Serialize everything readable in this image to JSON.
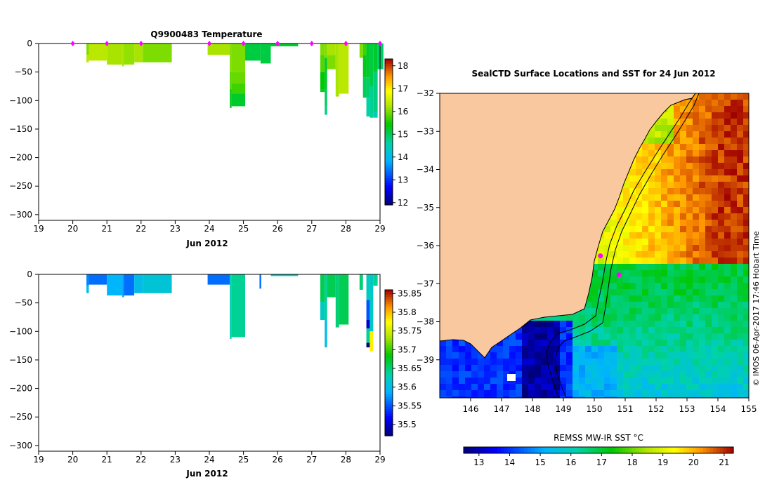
{
  "colors": {
    "land": "#f9c89e",
    "marker": "#ff00ff",
    "axis": "#000000"
  },
  "chart_data": [
    {
      "id": "temperature-profile",
      "type": "heatmap",
      "title": "Q9900483  Temperature",
      "xlabel": "Jun 2012",
      "x_ticks": [
        "19",
        "20",
        "21",
        "22",
        "23",
        "24",
        "25",
        "26",
        "27",
        "28",
        "29"
      ],
      "xlim": [
        19,
        29
      ],
      "ylim": [
        -310,
        0
      ],
      "y_ticks": [
        "0",
        "−50",
        "−100",
        "−150",
        "−200",
        "−250",
        "−300"
      ],
      "y_tick_values": [
        0,
        -50,
        -100,
        -150,
        -200,
        -250,
        -300
      ],
      "surface_markers": [
        20.0,
        21.0,
        22.0,
        24.0,
        25.0,
        26.0,
        27.0,
        28.0,
        29.0
      ],
      "profiles": [
        {
          "x0": 20.4,
          "x1": 20.47,
          "segments": [
            [
              0,
              -20,
              16.0
            ],
            [
              -20,
              -33,
              16.3
            ]
          ]
        },
        {
          "x0": 20.47,
          "x1": 21.0,
          "segments": [
            [
              0,
              -30,
              16.3
            ]
          ]
        },
        {
          "x0": 21.0,
          "x1": 21.45,
          "segments": [
            [
              0,
              -37,
              16.2
            ]
          ]
        },
        {
          "x0": 21.45,
          "x1": 21.5,
          "segments": [
            [
              0,
              -40,
              16.2
            ]
          ]
        },
        {
          "x0": 21.5,
          "x1": 21.8,
          "segments": [
            [
              0,
              -37,
              16.1
            ]
          ]
        },
        {
          "x0": 21.8,
          "x1": 22.05,
          "segments": [
            [
              0,
              -33,
              16.2
            ]
          ]
        },
        {
          "x0": 22.05,
          "x1": 22.9,
          "segments": [
            [
              0,
              -33,
              16.0
            ]
          ]
        },
        {
          "x0": 23.95,
          "x1": 24.6,
          "segments": [
            [
              0,
              -20,
              16.2
            ]
          ]
        },
        {
          "x0": 24.6,
          "x1": 24.65,
          "segments": [
            [
              0,
              -50,
              16.0
            ],
            [
              -50,
              -80,
              15.8
            ],
            [
              -80,
              -113,
              15.3
            ]
          ]
        },
        {
          "x0": 24.65,
          "x1": 25.05,
          "segments": [
            [
              0,
              -50,
              16.0
            ],
            [
              -50,
              -70,
              15.9
            ],
            [
              -70,
              -88,
              15.7
            ],
            [
              -88,
              -110,
              15.2
            ]
          ]
        },
        {
          "x0": 25.05,
          "x1": 25.5,
          "segments": [
            [
              0,
              -30,
              15.1
            ]
          ]
        },
        {
          "x0": 25.5,
          "x1": 25.8,
          "segments": [
            [
              0,
              -35,
              15.1
            ]
          ]
        },
        {
          "x0": 25.8,
          "x1": 26.6,
          "segments": [
            [
              0,
              -5,
              15.2
            ]
          ]
        },
        {
          "x0": 27.25,
          "x1": 27.38,
          "segments": [
            [
              0,
              -20,
              16.0
            ],
            [
              -20,
              -50,
              15.8
            ],
            [
              -50,
              -80,
              15.4
            ],
            [
              -80,
              -85,
              15.2
            ]
          ]
        },
        {
          "x0": 27.38,
          "x1": 27.45,
          "segments": [
            [
              0,
              -25,
              16.0
            ],
            [
              -25,
              -80,
              15.2
            ],
            [
              -80,
              -110,
              15.0
            ],
            [
              -110,
              -125,
              14.8
            ]
          ]
        },
        {
          "x0": 27.45,
          "x1": 27.7,
          "segments": [
            [
              0,
              -20,
              16.2
            ],
            [
              -20,
              -45,
              16.0
            ]
          ]
        },
        {
          "x0": 27.7,
          "x1": 27.8,
          "segments": [
            [
              0,
              -93,
              16.2
            ]
          ]
        },
        {
          "x0": 27.8,
          "x1": 28.08,
          "segments": [
            [
              0,
              -88,
              16.3
            ]
          ]
        },
        {
          "x0": 28.4,
          "x1": 28.5,
          "segments": [
            [
              0,
              -25,
              16.0
            ]
          ]
        },
        {
          "x0": 28.5,
          "x1": 28.6,
          "segments": [
            [
              0,
              -20,
              15.7
            ],
            [
              -20,
              -60,
              15.3
            ],
            [
              -60,
              -95,
              15.0
            ]
          ]
        },
        {
          "x0": 28.6,
          "x1": 28.7,
          "segments": [
            [
              0,
              -60,
              15.2
            ],
            [
              -60,
              -95,
              14.9
            ],
            [
              -95,
              -128,
              14.6
            ]
          ]
        },
        {
          "x0": 28.7,
          "x1": 28.8,
          "segments": [
            [
              0,
              -75,
              15.1
            ],
            [
              -75,
              -130,
              14.7
            ]
          ]
        },
        {
          "x0": 28.8,
          "x1": 28.93,
          "segments": [
            [
              0,
              -50,
              15.2
            ],
            [
              -50,
              -120,
              14.8
            ],
            [
              -120,
              -130,
              14.5
            ]
          ]
        },
        {
          "x0": 28.93,
          "x1": 29.1,
          "segments": [
            [
              0,
              -45,
              14.9
            ]
          ]
        }
      ],
      "colorbar": {
        "min": 11.9,
        "max": 18.3,
        "ticks": [
          "18",
          "17",
          "16",
          "15",
          "14",
          "13",
          "12"
        ],
        "tick_values": [
          18,
          17,
          16,
          15,
          14,
          13,
          12
        ]
      }
    },
    {
      "id": "salinity-profile",
      "type": "heatmap",
      "title": "",
      "xlabel": "Jun 2012",
      "x_ticks": [
        "19",
        "20",
        "21",
        "22",
        "23",
        "24",
        "25",
        "26",
        "27",
        "28",
        "29"
      ],
      "xlim": [
        19,
        29
      ],
      "ylim": [
        -310,
        0
      ],
      "y_ticks": [
        "0",
        "−50",
        "−100",
        "−150",
        "−200",
        "−250",
        "−300"
      ],
      "y_tick_values": [
        0,
        -50,
        -100,
        -150,
        -200,
        -250,
        -300
      ],
      "profiles": [
        {
          "x0": 20.4,
          "x1": 20.47,
          "segments": [
            [
              0,
              -20,
              35.57
            ],
            [
              -20,
              -33,
              35.6
            ]
          ]
        },
        {
          "x0": 20.47,
          "x1": 21.0,
          "segments": [
            [
              0,
              -18,
              35.56
            ]
          ]
        },
        {
          "x0": 21.0,
          "x1": 21.45,
          "segments": [
            [
              0,
              -37,
              35.59
            ]
          ]
        },
        {
          "x0": 21.45,
          "x1": 21.5,
          "segments": [
            [
              0,
              -40,
              35.58
            ]
          ]
        },
        {
          "x0": 21.5,
          "x1": 21.8,
          "segments": [
            [
              0,
              -37,
              35.56
            ]
          ]
        },
        {
          "x0": 21.8,
          "x1": 22.05,
          "segments": [
            [
              0,
              -33,
              35.6
            ]
          ]
        },
        {
          "x0": 22.05,
          "x1": 22.9,
          "segments": [
            [
              0,
              -33,
              35.61
            ]
          ]
        },
        {
          "x0": 23.95,
          "x1": 24.6,
          "segments": [
            [
              0,
              -18,
              35.56
            ]
          ]
        },
        {
          "x0": 24.6,
          "x1": 24.65,
          "segments": [
            [
              0,
              -113,
              35.63
            ]
          ]
        },
        {
          "x0": 24.65,
          "x1": 25.05,
          "segments": [
            [
              0,
              -110,
              35.64
            ]
          ]
        },
        {
          "x0": 25.47,
          "x1": 25.52,
          "segments": [
            [
              0,
              -25,
              35.56
            ]
          ]
        },
        {
          "x0": 25.8,
          "x1": 26.6,
          "segments": [
            [
              0,
              -3,
              35.62
            ]
          ]
        },
        {
          "x0": 27.25,
          "x1": 27.38,
          "segments": [
            [
              0,
              -48,
              35.66
            ],
            [
              -48,
              -80,
              35.62
            ]
          ]
        },
        {
          "x0": 27.38,
          "x1": 27.45,
          "segments": [
            [
              0,
              -80,
              35.64
            ],
            [
              -80,
              -128,
              35.6
            ]
          ]
        },
        {
          "x0": 27.45,
          "x1": 27.7,
          "segments": [
            [
              0,
              -40,
              35.66
            ]
          ]
        },
        {
          "x0": 27.7,
          "x1": 27.8,
          "segments": [
            [
              0,
              -93,
              35.65
            ]
          ]
        },
        {
          "x0": 27.8,
          "x1": 28.08,
          "segments": [
            [
              0,
              -88,
              35.66
            ]
          ]
        },
        {
          "x0": 28.4,
          "x1": 28.5,
          "segments": [
            [
              0,
              -27,
              35.65
            ]
          ]
        },
        {
          "x0": 28.6,
          "x1": 28.7,
          "segments": [
            [
              0,
              -45,
              35.62
            ],
            [
              -45,
              -80,
              35.55
            ],
            [
              -80,
              -95,
              35.5
            ],
            [
              -95,
              -120,
              35.64
            ],
            [
              -120,
              -128,
              35.47
            ]
          ]
        },
        {
          "x0": 28.7,
          "x1": 28.8,
          "segments": [
            [
              0,
              -100,
              35.62
            ],
            [
              -100,
              -135,
              35.78
            ]
          ]
        },
        {
          "x0": 28.8,
          "x1": 28.93,
          "segments": [
            [
              0,
              -20,
              35.64
            ]
          ]
        }
      ],
      "colorbar": {
        "min": 35.47,
        "max": 35.86,
        "ticks": [
          "35.85",
          "35.8",
          "35.75",
          "35.7",
          "35.65",
          "35.6",
          "35.55",
          "35.5"
        ],
        "tick_values": [
          35.85,
          35.8,
          35.75,
          35.7,
          35.65,
          35.6,
          35.55,
          35.5
        ]
      }
    },
    {
      "id": "sst-map",
      "type": "heatmap",
      "title": "SealCTD Surface Locations and SST for 24 Jun 2012",
      "x_ticks": [
        "146",
        "147",
        "148",
        "149",
        "150",
        "151",
        "152",
        "153",
        "154",
        "155"
      ],
      "x_tick_values": [
        146,
        147,
        148,
        149,
        150,
        151,
        152,
        153,
        154,
        155
      ],
      "xlim": [
        145.0,
        155.0
      ],
      "y_ticks": [
        "−32",
        "−33",
        "−34",
        "−35",
        "−36",
        "−37",
        "−38",
        "−39"
      ],
      "y_tick_values": [
        -32,
        -33,
        -34,
        -35,
        -36,
        -37,
        -38,
        -39
      ],
      "ylim": [
        -40.0,
        -32.0
      ],
      "ctd_locations": [
        {
          "lon": 150.2,
          "lat": -36.27
        },
        {
          "lon": 150.8,
          "lat": -36.77
        }
      ],
      "sst_range": [
        12.5,
        21.3
      ],
      "colorbar": {
        "label": "REMSS MW-IR SST °C",
        "min": 12.5,
        "max": 21.3,
        "ticks": [
          "13",
          "14",
          "15",
          "16",
          "17",
          "18",
          "19",
          "20",
          "21"
        ],
        "tick_values": [
          13,
          14,
          15,
          16,
          17,
          18,
          19,
          20,
          21
        ]
      }
    }
  ],
  "side_label": "© IMOS 06-Apr-2017 17:46 Hobart Time"
}
